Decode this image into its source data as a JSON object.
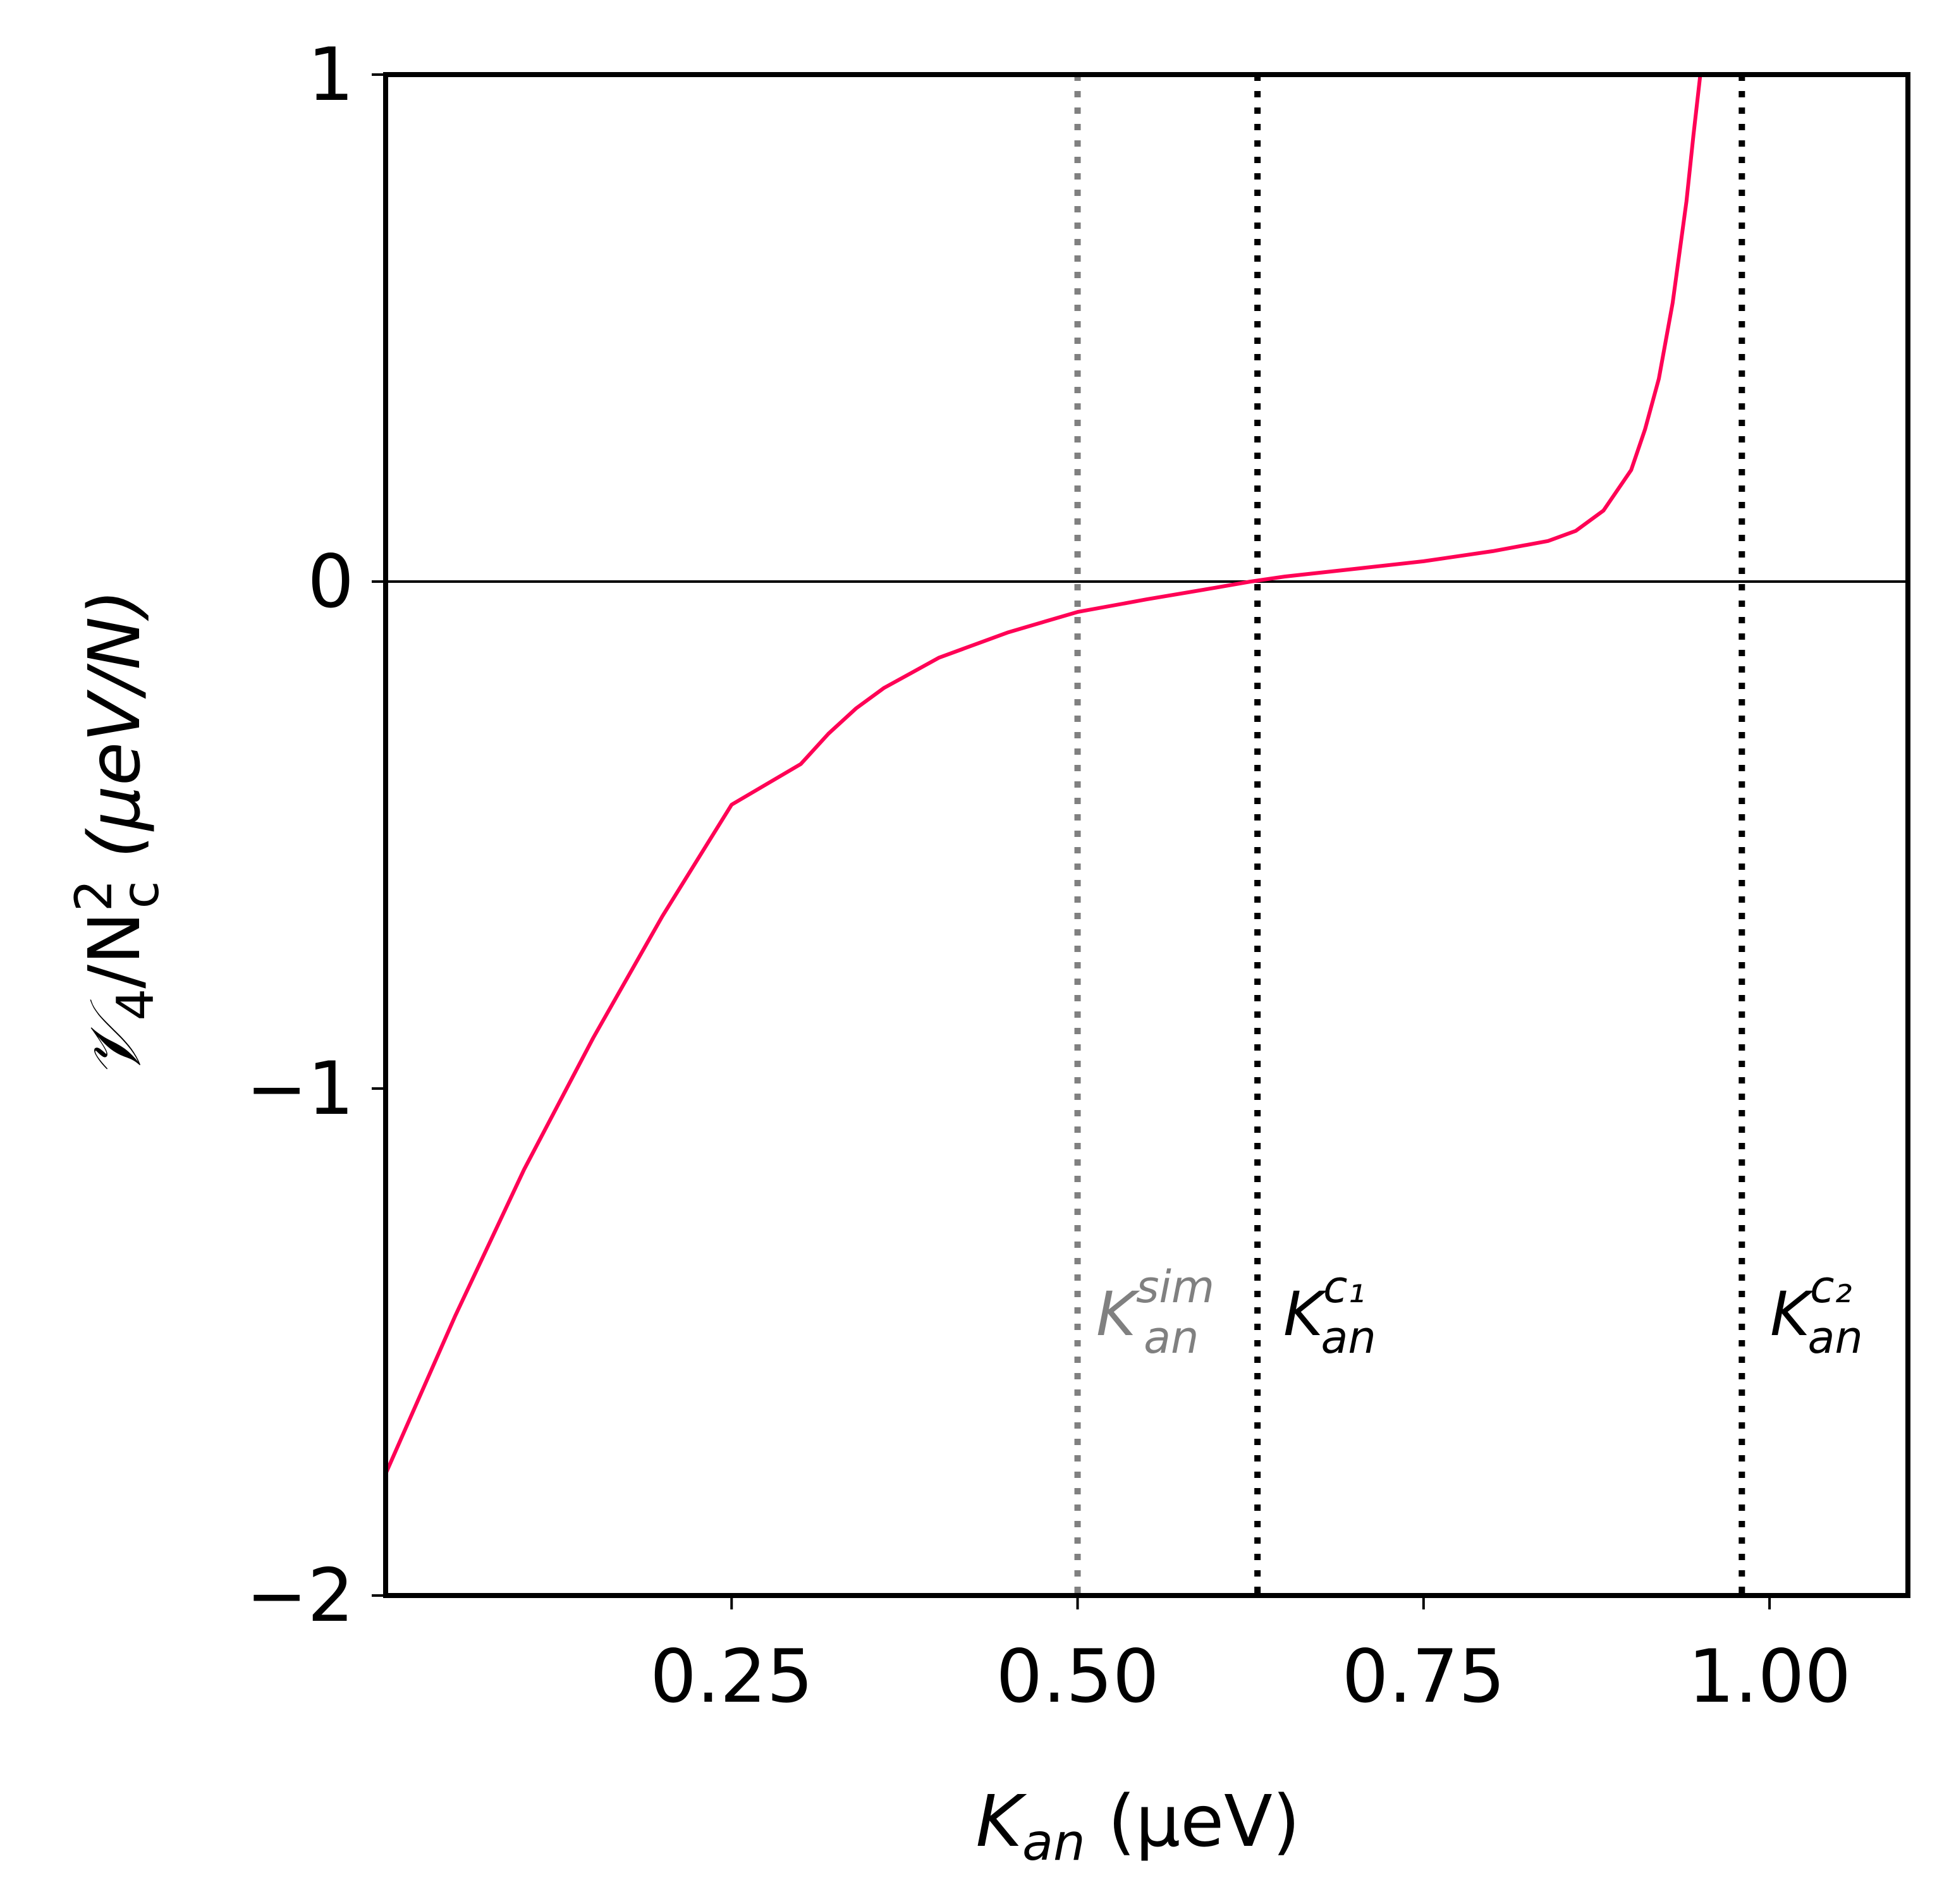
{
  "chart_data": {
    "type": "line",
    "title": "",
    "xlabel": {
      "base": "K",
      "sub": "an",
      "unit": "(μeV)"
    },
    "ylabel": {
      "base": "𝒱",
      "sub": "4",
      "mid": "/N",
      "sup": "2",
      "sub2": "c",
      "unit": "(μeV/N)"
    },
    "xlim": [
      0.0,
      1.1
    ],
    "ylim": [
      -2,
      1
    ],
    "xticks": [
      0.25,
      0.5,
      0.75,
      1.0
    ],
    "xtick_labels": [
      "0.25",
      "0.50",
      "0.75",
      "1.00"
    ],
    "yticks": [
      1,
      0,
      -1,
      -2
    ],
    "ytick_labels": [
      "1",
      "0",
      "−1",
      "−2"
    ],
    "hline_y": 0,
    "series": [
      {
        "name": "V4/Nc^2",
        "color": "#ff0055",
        "x": [
          0.0,
          0.05,
          0.1,
          0.15,
          0.2,
          0.25,
          0.3,
          0.32,
          0.34,
          0.36,
          0.38,
          0.4,
          0.45,
          0.5,
          0.55,
          0.6,
          0.625,
          0.65,
          0.7,
          0.75,
          0.8,
          0.84,
          0.86,
          0.88,
          0.9,
          0.91,
          0.92,
          0.93,
          0.94,
          0.945,
          0.95,
          0.953
        ],
        "y": [
          -1.76,
          -1.45,
          -1.16,
          -0.9,
          -0.66,
          -0.44,
          -0.36,
          -0.3,
          -0.25,
          -0.21,
          -0.18,
          -0.15,
          -0.1,
          -0.06,
          -0.035,
          -0.012,
          0.0,
          0.01,
          0.025,
          0.04,
          0.06,
          0.08,
          0.1,
          0.14,
          0.22,
          0.3,
          0.4,
          0.55,
          0.75,
          0.88,
          1.0,
          1.0
        ]
      }
    ],
    "vlines": [
      {
        "x": 0.5,
        "color": "#808080",
        "label": {
          "base": "K",
          "sub": "an",
          "sup": "sim"
        }
      },
      {
        "x": 0.63,
        "color": "#000000",
        "label": {
          "base": "K",
          "sub": "an",
          "sup": "c₁"
        }
      },
      {
        "x": 0.98,
        "color": "#000000",
        "label": {
          "base": "K",
          "sub": "an",
          "sup": "c₂"
        }
      }
    ]
  }
}
